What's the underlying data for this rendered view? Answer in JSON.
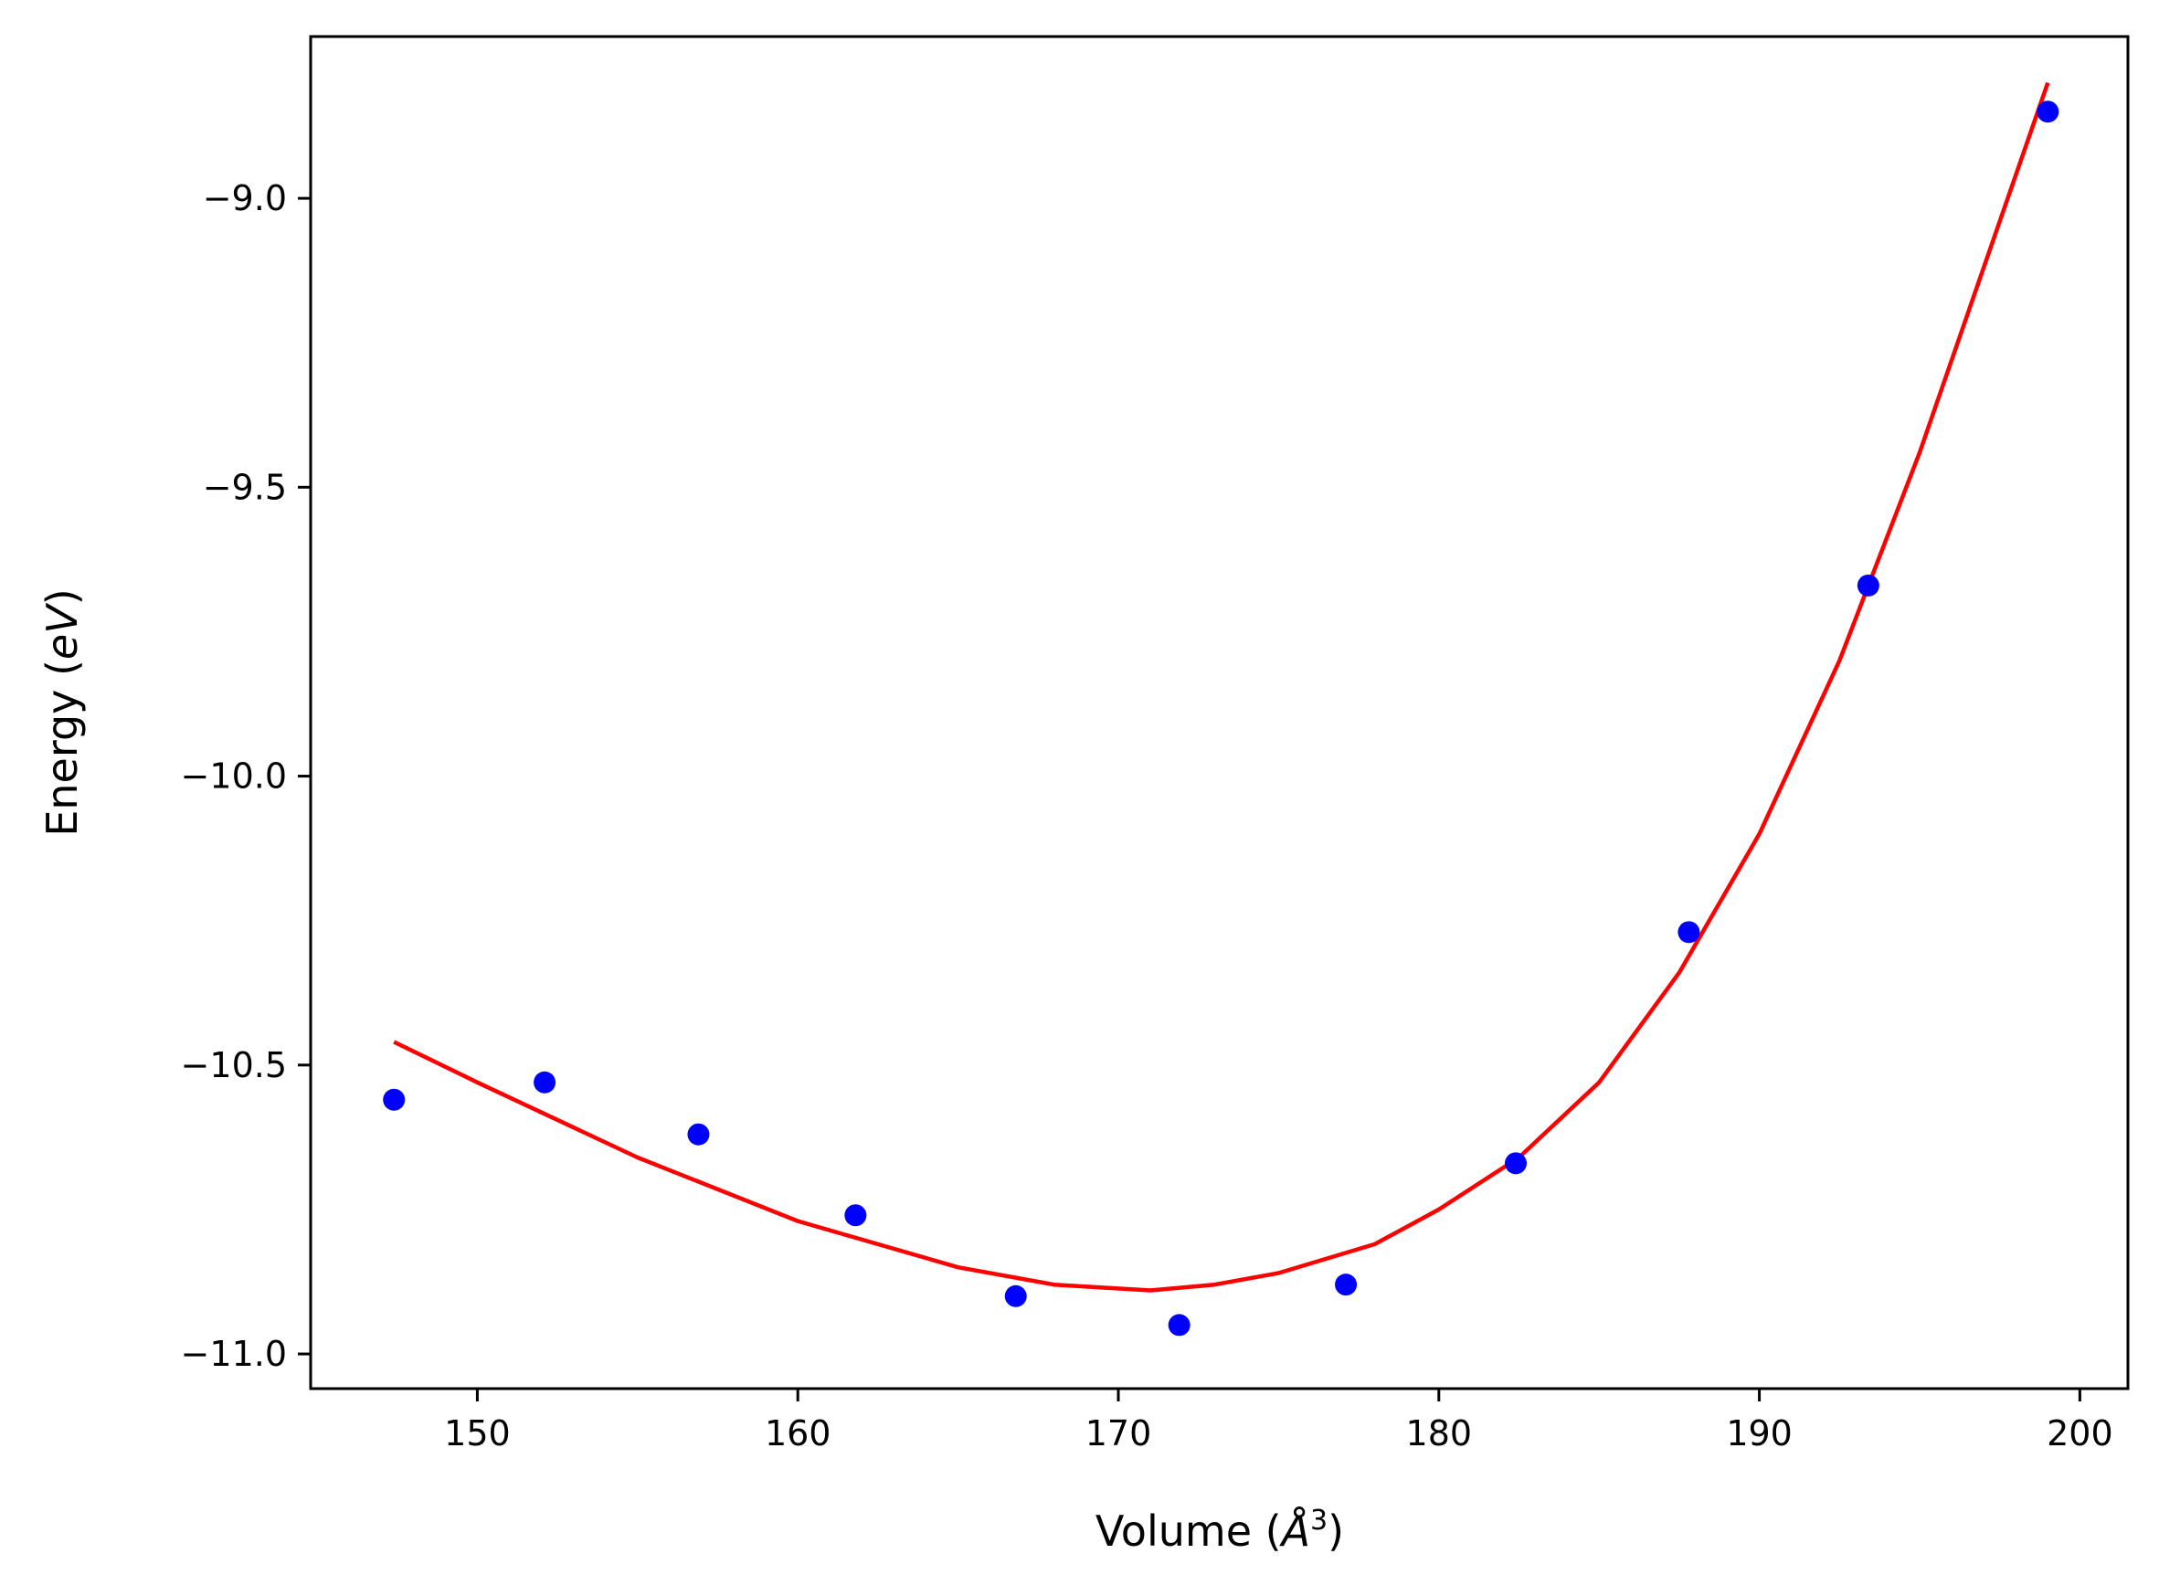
{
  "chart_data": {
    "type": "scatter",
    "title": "",
    "xlabel": "Volume (",
    "xlabel_sym": "Å",
    "xlabel_exp": "3",
    "xlabel_close": ")",
    "ylabel": "Energy (",
    "ylabel_sym": "eV",
    "ylabel_close": ")",
    "xlim": [
      144.8,
      201.5
    ],
    "ylim": [
      -11.06,
      -8.72
    ],
    "grid": false,
    "legend": "none",
    "x_ticks": [
      150,
      160,
      170,
      180,
      190,
      200
    ],
    "x_tick_labels": [
      "150",
      "160",
      "170",
      "180",
      "190",
      "200"
    ],
    "y_ticks": [
      -9.0,
      -9.5,
      -10.0,
      -10.5,
      -11.0
    ],
    "y_tick_labels": [
      "−9.0",
      "−9.5",
      "−10.0",
      "−10.5",
      "−11.0"
    ],
    "series": [
      {
        "kind": "scatter",
        "color": "#0000ff",
        "x": [
          147.4,
          152.1,
          156.9,
          161.8,
          166.8,
          171.9,
          177.1,
          182.4,
          187.8,
          193.4,
          199.0
        ],
        "y": [
          -10.56,
          -10.53,
          -10.62,
          -10.76,
          -10.9,
          -10.95,
          -10.88,
          -10.67,
          -10.27,
          -9.67,
          -8.85
        ]
      },
      {
        "kind": "line",
        "color": "#ff0000",
        "x": [
          147.4,
          150,
          155,
          160,
          165,
          168,
          171,
          173,
          175,
          178,
          180,
          182.5,
          185,
          187.5,
          190,
          192.5,
          195,
          197,
          199.0
        ],
        "y": [
          -10.46,
          -10.53,
          -10.66,
          -10.77,
          -10.85,
          -10.88,
          -10.89,
          -10.88,
          -10.86,
          -10.81,
          -10.75,
          -10.66,
          -10.53,
          -10.34,
          -10.1,
          -9.8,
          -9.44,
          -9.12,
          -8.8
        ]
      }
    ]
  }
}
